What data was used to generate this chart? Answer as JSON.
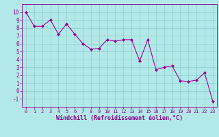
{
  "x": [
    0,
    1,
    2,
    3,
    4,
    5,
    6,
    7,
    8,
    9,
    10,
    11,
    12,
    13,
    14,
    15,
    16,
    17,
    18,
    19,
    20,
    21,
    22,
    23
  ],
  "y": [
    10,
    8.2,
    8.2,
    9.0,
    7.2,
    8.5,
    7.2,
    6.0,
    5.3,
    5.4,
    6.5,
    6.3,
    6.5,
    6.5,
    3.8,
    6.5,
    2.7,
    3.0,
    3.2,
    1.3,
    1.2,
    1.4,
    2.3,
    -1.3
  ],
  "line_color": "#990099",
  "marker": "D",
  "marker_size": 2.0,
  "bg_color": "#b3e8e8",
  "grid_color": "#88cccc",
  "xlabel": "Windchill (Refroidissement éolien,°C)",
  "xlim": [
    -0.5,
    23.5
  ],
  "ylim": [
    -2,
    11
  ],
  "yticks": [
    -1,
    0,
    1,
    2,
    3,
    4,
    5,
    6,
    7,
    8,
    9,
    10
  ],
  "xticks": [
    0,
    1,
    2,
    3,
    4,
    5,
    6,
    7,
    8,
    9,
    10,
    11,
    12,
    13,
    14,
    15,
    16,
    17,
    18,
    19,
    20,
    21,
    22,
    23
  ],
  "tick_color": "#880088",
  "label_color": "#880088",
  "spine_color": "#880088",
  "xtick_fontsize": 5.0,
  "ytick_fontsize": 5.5,
  "xlabel_fontsize": 6.0
}
